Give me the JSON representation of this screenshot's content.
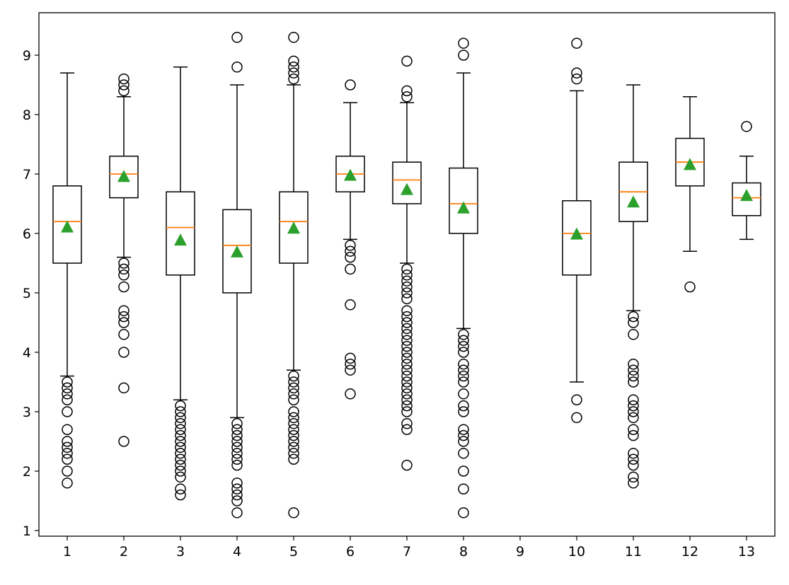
{
  "chart_data": {
    "type": "boxplot",
    "title": "",
    "xlabel": "",
    "ylabel": "",
    "xlim": [
      0.5,
      13.5
    ],
    "ylim": [
      0.905,
      9.714
    ],
    "xticks": [
      "1",
      "2",
      "3",
      "4",
      "5",
      "6",
      "7",
      "8",
      "9",
      "10",
      "11",
      "12",
      "13"
    ],
    "yticks": [
      "1",
      "2",
      "3",
      "4",
      "5",
      "6",
      "7",
      "8",
      "9"
    ],
    "colors": {
      "median": "#ff7f0e",
      "mean": "#2ca02c",
      "box": "#000000"
    },
    "boxes": [
      {
        "pos": 1,
        "whislo": 3.6,
        "q1": 5.5,
        "med": 6.2,
        "q3": 6.8,
        "whishi": 8.7,
        "mean": 6.1,
        "fliers": [
          3.5,
          3.4,
          3.3,
          3.2,
          3.0,
          2.7,
          2.5,
          2.4,
          2.3,
          2.2,
          2.0,
          1.8
        ]
      },
      {
        "pos": 2,
        "whislo": 5.6,
        "q1": 6.6,
        "med": 7.0,
        "q3": 7.3,
        "whishi": 8.3,
        "mean": 6.95,
        "fliers": [
          8.4,
          8.5,
          8.6,
          5.5,
          5.4,
          5.3,
          5.1,
          4.7,
          4.6,
          4.5,
          4.3,
          4.0,
          3.4,
          2.5
        ]
      },
      {
        "pos": 3,
        "whislo": 3.2,
        "q1": 5.3,
        "med": 6.1,
        "q3": 6.7,
        "whishi": 8.8,
        "mean": 5.88,
        "fliers": [
          3.1,
          3.0,
          2.9,
          2.8,
          2.7,
          2.6,
          2.5,
          2.4,
          2.3,
          2.2,
          2.1,
          2.0,
          1.9,
          1.7,
          1.6
        ]
      },
      {
        "pos": 4,
        "whislo": 2.9,
        "q1": 5.0,
        "med": 5.8,
        "q3": 6.4,
        "whishi": 8.5,
        "mean": 5.68,
        "fliers": [
          8.8,
          9.3,
          2.8,
          2.7,
          2.6,
          2.5,
          2.4,
          2.3,
          2.2,
          2.1,
          1.8,
          1.7,
          1.6,
          1.5,
          1.3
        ]
      },
      {
        "pos": 5,
        "whislo": 3.7,
        "q1": 5.5,
        "med": 6.2,
        "q3": 6.7,
        "whishi": 8.5,
        "mean": 6.08,
        "fliers": [
          8.6,
          8.7,
          8.8,
          8.9,
          9.3,
          3.6,
          3.5,
          3.4,
          3.3,
          3.2,
          3.0,
          2.9,
          2.8,
          2.7,
          2.6,
          2.5,
          2.4,
          2.3,
          2.2,
          1.3
        ]
      },
      {
        "pos": 6,
        "whislo": 5.9,
        "q1": 6.7,
        "med": 7.0,
        "q3": 7.3,
        "whishi": 8.2,
        "mean": 6.97,
        "fliers": [
          8.5,
          5.8,
          5.7,
          5.6,
          5.4,
          4.8,
          3.9,
          3.8,
          3.7,
          3.3
        ]
      },
      {
        "pos": 7,
        "whislo": 5.5,
        "q1": 6.5,
        "med": 6.9,
        "q3": 7.2,
        "whishi": 8.2,
        "mean": 6.73,
        "fliers": [
          8.3,
          8.4,
          8.9,
          5.4,
          5.3,
          5.2,
          5.1,
          5.0,
          4.9,
          4.7,
          4.6,
          4.5,
          4.4,
          4.3,
          4.2,
          4.1,
          4.0,
          3.9,
          3.8,
          3.7,
          3.6,
          3.5,
          3.4,
          3.3,
          3.2,
          3.1,
          3.0,
          2.8,
          2.7,
          2.1
        ]
      },
      {
        "pos": 8,
        "whislo": 4.4,
        "q1": 6.0,
        "med": 6.5,
        "q3": 7.1,
        "whishi": 8.7,
        "mean": 6.42,
        "fliers": [
          9.0,
          9.2,
          4.3,
          4.2,
          4.1,
          4.0,
          3.8,
          3.7,
          3.6,
          3.5,
          3.3,
          3.1,
          3.0,
          2.7,
          2.6,
          2.5,
          2.3,
          2.0,
          1.7,
          1.3
        ]
      },
      {
        "pos": 10,
        "whislo": 3.5,
        "q1": 5.3,
        "med": 6.0,
        "q3": 6.55,
        "whishi": 8.4,
        "mean": 5.98,
        "fliers": [
          8.6,
          8.7,
          9.2,
          3.2,
          2.9
        ]
      },
      {
        "pos": 11,
        "whislo": 4.7,
        "q1": 6.2,
        "med": 6.7,
        "q3": 7.2,
        "whishi": 8.5,
        "mean": 6.52,
        "fliers": [
          4.6,
          4.5,
          4.3,
          3.8,
          3.7,
          3.6,
          3.5,
          3.2,
          3.1,
          3.0,
          2.9,
          2.7,
          2.6,
          2.3,
          2.2,
          2.1,
          1.9,
          1.8
        ]
      },
      {
        "pos": 12,
        "whislo": 5.7,
        "q1": 6.8,
        "med": 7.2,
        "q3": 7.6,
        "whishi": 8.3,
        "mean": 7.15,
        "fliers": [
          5.1
        ]
      },
      {
        "pos": 13,
        "whislo": 5.9,
        "q1": 6.3,
        "med": 6.6,
        "q3": 6.85,
        "whishi": 7.3,
        "mean": 6.63,
        "fliers": [
          7.8
        ]
      }
    ]
  }
}
